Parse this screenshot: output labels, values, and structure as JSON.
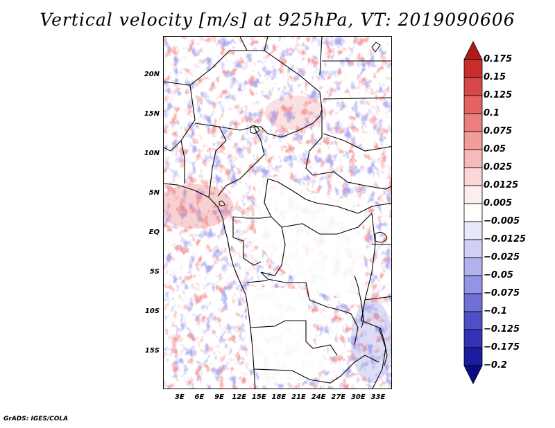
{
  "title": "Vertical velocity [m/s] at 925hPa, VT: 2019090606",
  "footer": "GrADS: IGES/COLA",
  "lat_ticks": [
    {
      "label": "20N",
      "lat": 20
    },
    {
      "label": "15N",
      "lat": 15
    },
    {
      "label": "10N",
      "lat": 10
    },
    {
      "label": "5N",
      "lat": 5
    },
    {
      "label": "EQ",
      "lat": 0
    },
    {
      "label": "5S",
      "lat": -5
    },
    {
      "label": "10S",
      "lat": -10
    },
    {
      "label": "15S",
      "lat": -15
    }
  ],
  "lon_ticks": [
    {
      "label": "3E",
      "lon": 3
    },
    {
      "label": "6E",
      "lon": 6
    },
    {
      "label": "9E",
      "lon": 9
    },
    {
      "label": "12E",
      "lon": 12
    },
    {
      "label": "15E",
      "lon": 15
    },
    {
      "label": "18E",
      "lon": 18
    },
    {
      "label": "21E",
      "lon": 21
    },
    {
      "label": "24E",
      "lon": 24
    },
    {
      "label": "27E",
      "lon": 27
    },
    {
      "label": "30E",
      "lon": 30
    },
    {
      "label": "33E",
      "lon": 33
    }
  ],
  "extent": {
    "lon_min": 0.5,
    "lon_max": 35.1,
    "lat_min": -19.7,
    "lat_max": 25
  },
  "colorbar": {
    "labels": [
      "0.175",
      "0.15",
      "0.125",
      "0.1",
      "0.075",
      "0.05",
      "0.025",
      "0.0125",
      "0.005",
      "−0.005",
      "−0.0125",
      "−0.025",
      "−0.05",
      "−0.075",
      "−0.1",
      "−0.125",
      "−0.175",
      "−0.2"
    ],
    "colors": [
      "#b01a1a",
      "#c92e2e",
      "#d94848",
      "#e36262",
      "#eb7f7f",
      "#f29c9c",
      "#f7baba",
      "#fbd6d6",
      "#fdeeee",
      "#ffffff",
      "#e8e8fb",
      "#d0d0f6",
      "#b2b2ee",
      "#9494e4",
      "#7070d6",
      "#4f4fc6",
      "#3333b4",
      "#1c1ca0",
      "#0c0c82"
    ]
  },
  "chart_data": {
    "type": "heatmap",
    "title": "Vertical velocity [m/s] at 925hPa, VT: 2019090606",
    "variable": "Vertical velocity",
    "units": "m/s",
    "level": "925hPa",
    "valid_time": "2019090606",
    "lon_range": [
      0.5,
      35.1
    ],
    "lat_range": [
      -19.7,
      25
    ],
    "contour_levels": [
      -0.2,
      -0.175,
      -0.125,
      -0.1,
      -0.075,
      -0.05,
      -0.025,
      -0.0125,
      -0.005,
      0.005,
      0.0125,
      0.025,
      0.05,
      0.075,
      0.1,
      0.125,
      0.15,
      0.175
    ]
  }
}
